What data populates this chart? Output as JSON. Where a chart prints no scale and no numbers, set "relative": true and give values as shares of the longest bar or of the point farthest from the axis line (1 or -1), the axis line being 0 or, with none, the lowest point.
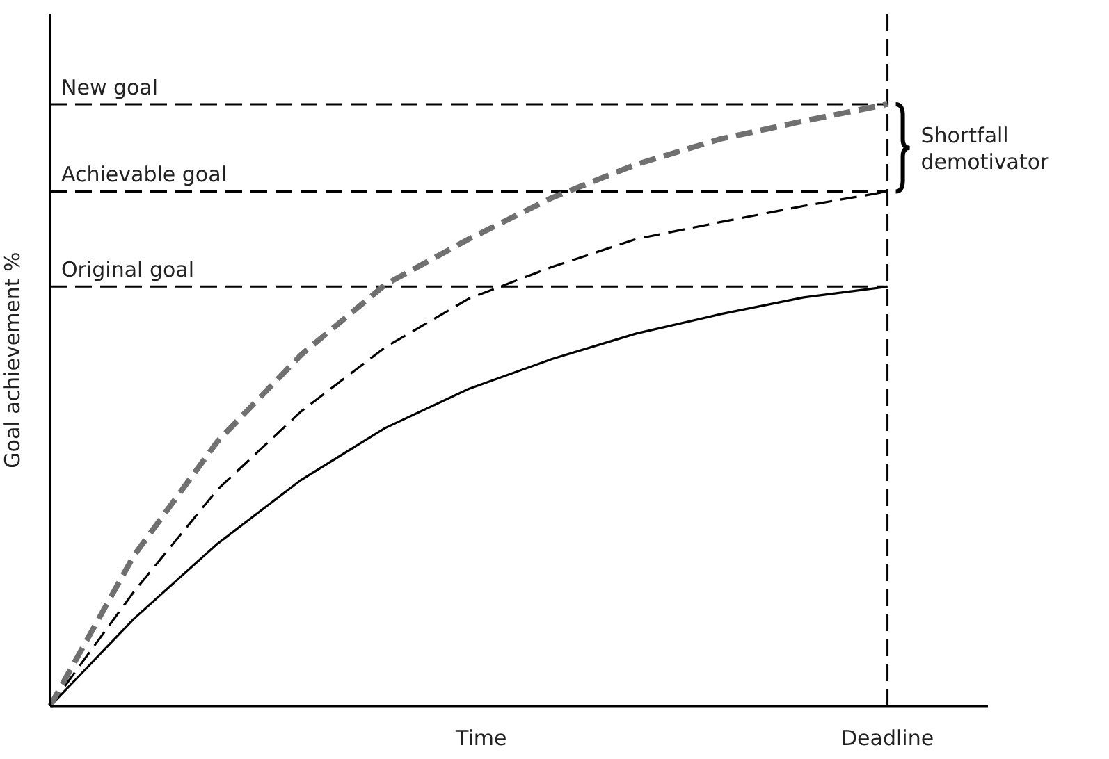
{
  "chart_data": {
    "type": "line",
    "relative": true,
    "xlabel": "Time",
    "ylabel": "Goal achievement %",
    "categories": [
      null,
      null,
      null,
      null,
      null,
      null,
      null,
      null,
      null,
      null,
      null
    ],
    "series": [
      {
        "color": "#000000",
        "line_style": "solid",
        "values": [
          0,
          0.145,
          0.27,
          0.376,
          0.462,
          0.527,
          0.577,
          0.619,
          0.651,
          0.679,
          0.697
        ]
      },
      {
        "color": "#000000",
        "line_style": "dashed",
        "values": [
          0,
          0.19,
          0.36,
          0.49,
          0.596,
          0.677,
          0.73,
          0.776,
          0.804,
          0.831,
          0.855
        ]
      },
      {
        "color": "#707070",
        "line_style": "dashed",
        "values": [
          0,
          0.25,
          0.44,
          0.584,
          0.7,
          0.776,
          0.845,
          0.9,
          0.942,
          0.972,
          1
        ]
      }
    ],
    "ref_lines": [
      {
        "axis": "y",
        "value": 1,
        "label": "New goal",
        "color": "#000000",
        "line_style": "dashed"
      },
      {
        "axis": "y",
        "value": 0.855,
        "label": "Achievable goal",
        "color": "#000000",
        "line_style": "dashed"
      },
      {
        "axis": "y",
        "value": 0.697,
        "label": "Original goal",
        "color": "#000000",
        "line_style": "dashed"
      },
      {
        "axis": "x",
        "label": "Deadline",
        "color": "#000000",
        "line_style": "dashed"
      }
    ],
    "annotations": [
      "Shortfall\ndemotivator"
    ]
  }
}
